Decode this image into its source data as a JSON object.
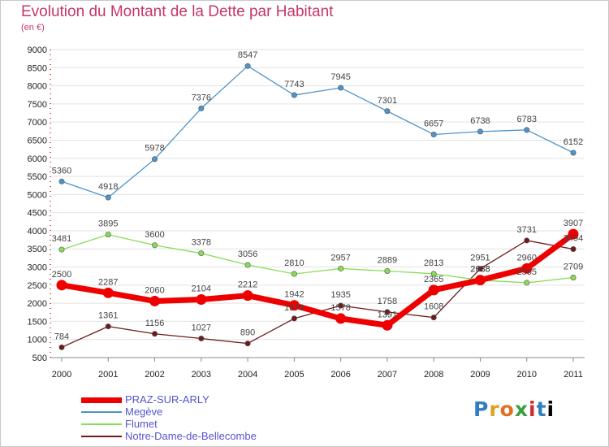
{
  "title": "Evolution du Montant de la Dette par Habitant",
  "subtitle": "(en €)",
  "logo_text": "Proxiti",
  "chart_data": {
    "type": "line",
    "title": "Evolution du Montant de la Dette par Habitant",
    "subtitle": "(en €)",
    "x": [
      "2000",
      "2001",
      "2002",
      "2003",
      "2004",
      "2005",
      "2006",
      "2007",
      "2008",
      "2009",
      "2010",
      "2011"
    ],
    "ylim": [
      500,
      9000
    ],
    "yticks": [
      500,
      1000,
      1500,
      2000,
      2500,
      3000,
      3500,
      4000,
      4500,
      5000,
      5500,
      6000,
      6500,
      7000,
      7500,
      8000,
      8500,
      9000
    ],
    "grid": "horizontal",
    "legend_position": "bottom-left",
    "series": [
      {
        "name": "PRAZ-SUR-ARLY",
        "color": "#ee0000",
        "values": [
          2500,
          2287,
          2060,
          2104,
          2212,
          1942,
          1578,
          1391,
          2365,
          2638,
          2960,
          3907
        ]
      },
      {
        "name": "Megève",
        "color": "#4e94cc",
        "values": [
          5360,
          4918,
          5978,
          7376,
          8547,
          7743,
          7945,
          7301,
          6657,
          6738,
          6783,
          6152
        ]
      },
      {
        "name": "Flumet",
        "color": "#88dd55",
        "values": [
          3481,
          3895,
          3600,
          3378,
          3056,
          2810,
          2957,
          2889,
          2813,
          2638,
          2565,
          2709
        ]
      },
      {
        "name": "Notre-Dame-de-Bellecombe",
        "color": "#6e1a1a",
        "values": [
          784,
          1361,
          1156,
          1027,
          890,
          1578,
          1935,
          1758,
          1608,
          2951,
          3731,
          3494
        ]
      }
    ]
  }
}
